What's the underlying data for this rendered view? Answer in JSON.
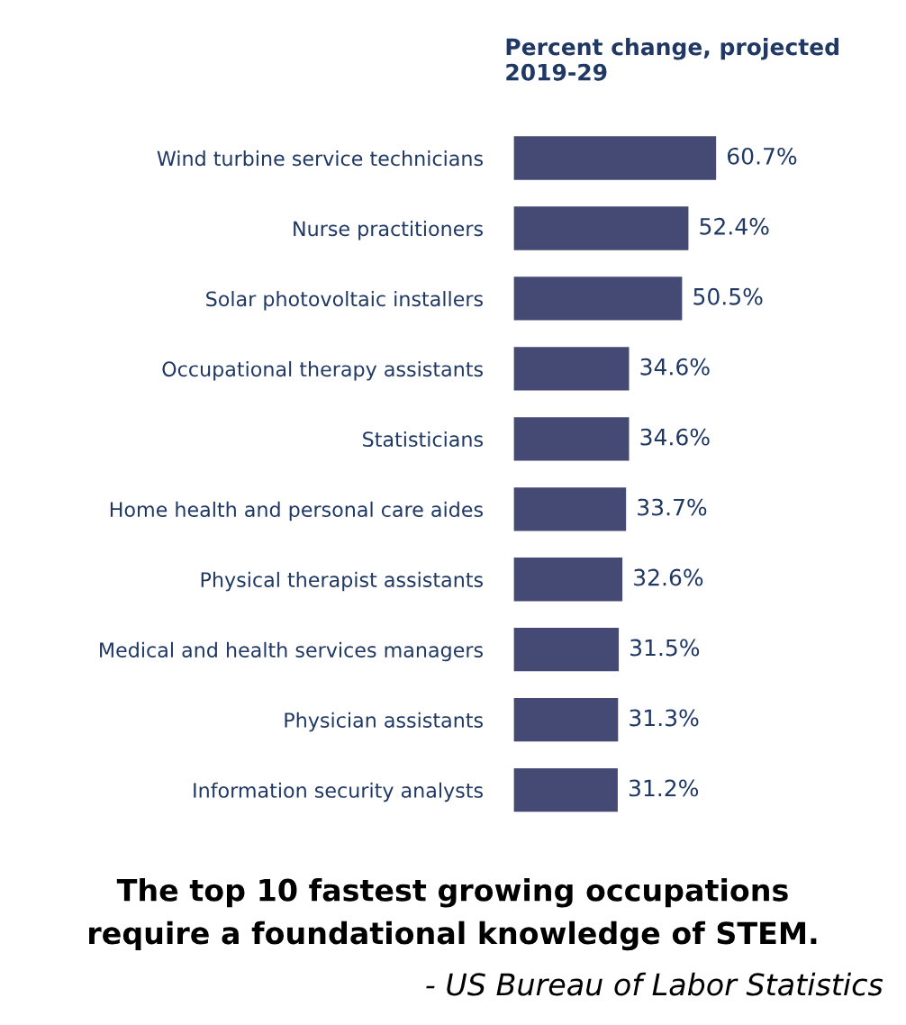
{
  "chart_data": {
    "type": "bar",
    "orientation": "horizontal",
    "title": "Percent change, projected\n2019-29",
    "categories": [
      "Wind turbine service technicians",
      "Nurse practitioners",
      "Solar photovoltaic installers",
      "Occupational therapy assistants",
      "Statisticians",
      "Home health and personal care aides",
      "Physical therapist assistants",
      "Medical and health services managers",
      "Physician assistants",
      "Information security analysts"
    ],
    "values": [
      60.7,
      52.4,
      50.5,
      34.6,
      34.6,
      33.7,
      32.6,
      31.5,
      31.3,
      31.2
    ],
    "value_labels": [
      "60.7%",
      "52.4%",
      "50.5%",
      "34.6%",
      "34.6%",
      "33.7%",
      "32.6%",
      "31.5%",
      "31.3%",
      "31.2%"
    ],
    "color": "#444a73",
    "grid": false,
    "legend": false,
    "annotations": [
      "The top 10 fastest growing occupations\nrequire a foundational knowledge of STEM.",
      "- US Bureau of Labor Statistics"
    ]
  }
}
